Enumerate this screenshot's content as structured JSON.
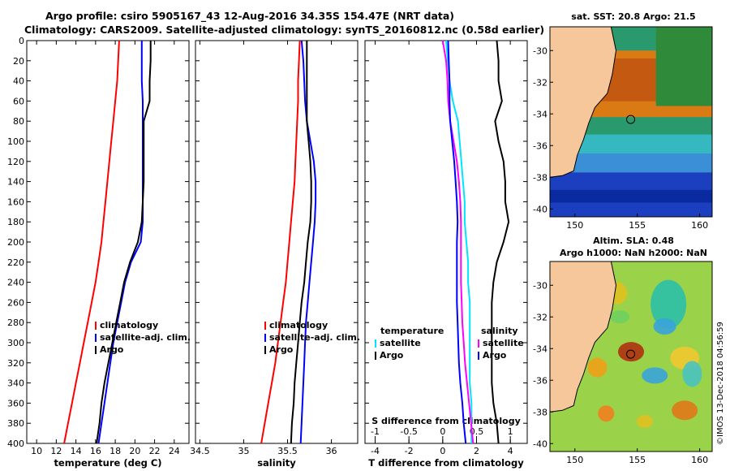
{
  "title_line1": "Argo profile: csiro 5905167_43 12-Aug-2016 34.35S 154.47E (NRT data)",
  "title_line2": "Climatology: CARS2009. Satellite-adjusted climatology: synTS_20160812.nc (0.58d earlier)",
  "map_sst_title": "sat. SST: 20.8 Argo: 21.5",
  "map_sla_title1": "Altim. SLA: 0.48",
  "map_sla_title2": "Argo h1000: NaN h2000: NaN",
  "stamp": "©IMOS 13-Dec-2018 04:56:59",
  "colors": {
    "climatology": "#ff0000",
    "satellite": "#0000ff",
    "argo": "#000000",
    "t_diff_sat": "#00e5ff",
    "s_diff_sat": "#ff00ff",
    "land": "#f5c79a"
  },
  "chart_data": [
    {
      "type": "line",
      "name": "temperature",
      "xlabel": "temperature (deg C)",
      "ylabel": "",
      "xlim": [
        9,
        25.5
      ],
      "ylim": [
        400,
        0
      ],
      "xticks": [
        "10",
        "12",
        "14",
        "16",
        "18",
        "20",
        "22",
        "24"
      ],
      "yticks": [
        "0",
        "20",
        "40",
        "60",
        "80",
        "100",
        "120",
        "140",
        "160",
        "180",
        "200",
        "220",
        "240",
        "260",
        "280",
        "300",
        "320",
        "340",
        "360",
        "380",
        "400"
      ],
      "legend": [
        "climatology",
        "satellite-adj. clim.",
        "Argo"
      ],
      "series": [
        {
          "name": "climatology",
          "x": [
            18.4,
            18.3,
            18.2,
            18.0,
            17.8,
            17.6,
            17.4,
            17.2,
            17.0,
            16.8,
            16.6,
            16.3,
            16.0,
            15.6,
            15.2,
            14.8,
            14.4,
            14.0,
            13.6,
            13.2,
            12.8
          ],
          "y": [
            0,
            20,
            40,
            60,
            80,
            100,
            120,
            140,
            160,
            180,
            200,
            220,
            240,
            260,
            280,
            300,
            320,
            340,
            360,
            380,
            400
          ]
        },
        {
          "name": "satellite-adj. clim.",
          "x": [
            20.7,
            20.7,
            20.7,
            20.8,
            20.8,
            20.8,
            20.8,
            20.8,
            20.8,
            20.8,
            20.6,
            19.6,
            19.0,
            18.6,
            18.2,
            17.8,
            17.5,
            17.2,
            16.9,
            16.6,
            16.3
          ],
          "y": [
            0,
            20,
            40,
            60,
            80,
            100,
            120,
            140,
            160,
            180,
            200,
            220,
            240,
            260,
            280,
            300,
            320,
            340,
            360,
            380,
            400
          ]
        },
        {
          "name": "Argo",
          "x": [
            21.6,
            21.6,
            21.5,
            21.5,
            20.9,
            20.9,
            20.9,
            20.9,
            20.8,
            20.7,
            20.3,
            19.5,
            18.9,
            18.5,
            18.1,
            17.7,
            17.3,
            16.9,
            16.6,
            16.4,
            16.1
          ],
          "y": [
            0,
            20,
            40,
            60,
            80,
            100,
            120,
            140,
            160,
            180,
            200,
            220,
            240,
            260,
            280,
            300,
            320,
            340,
            360,
            380,
            400
          ]
        }
      ]
    },
    {
      "type": "line",
      "name": "salinity",
      "xlabel": "salinity",
      "ylabel": "",
      "xlim": [
        34.45,
        36.3
      ],
      "ylim": [
        400,
        0
      ],
      "xticks": [
        "34.5",
        "35",
        "35.5",
        "36"
      ],
      "legend": [
        "climatology",
        "satellite-adj. clim.",
        "Argo"
      ],
      "series": [
        {
          "name": "climatology",
          "x": [
            35.64,
            35.63,
            35.62,
            35.62,
            35.61,
            35.6,
            35.59,
            35.58,
            35.56,
            35.54,
            35.52,
            35.5,
            35.48,
            35.45,
            35.42,
            35.39,
            35.36,
            35.32,
            35.28,
            35.24,
            35.2
          ],
          "y": [
            0,
            20,
            40,
            60,
            80,
            100,
            120,
            140,
            160,
            180,
            200,
            220,
            240,
            260,
            280,
            300,
            320,
            340,
            360,
            380,
            400
          ]
        },
        {
          "name": "satellite-adj. clim.",
          "x": [
            35.66,
            35.68,
            35.69,
            35.7,
            35.72,
            35.76,
            35.8,
            35.82,
            35.82,
            35.81,
            35.79,
            35.77,
            35.75,
            35.73,
            35.71,
            35.7,
            35.69,
            35.68,
            35.67,
            35.66,
            35.65
          ],
          "y": [
            0,
            20,
            40,
            60,
            80,
            100,
            120,
            140,
            160,
            180,
            200,
            220,
            240,
            260,
            280,
            300,
            320,
            340,
            360,
            380,
            400
          ]
        },
        {
          "name": "Argo",
          "x": [
            35.72,
            35.72,
            35.72,
            35.72,
            35.72,
            35.74,
            35.76,
            35.77,
            35.77,
            35.76,
            35.73,
            35.71,
            35.69,
            35.66,
            35.64,
            35.62,
            35.6,
            35.58,
            35.57,
            35.55,
            35.54
          ],
          "y": [
            0,
            20,
            40,
            60,
            80,
            100,
            120,
            140,
            160,
            180,
            200,
            220,
            240,
            260,
            280,
            300,
            320,
            340,
            360,
            380,
            400
          ]
        }
      ]
    },
    {
      "type": "line",
      "name": "differences",
      "xlabel": "T difference from climatology",
      "top_axis_label": "S difference from climatology",
      "xlim": [
        -4.6,
        5.0
      ],
      "ylim": [
        400,
        0
      ],
      "xticks": [
        "-4",
        "-2",
        "0",
        "2",
        "4"
      ],
      "top_xticks": [
        "-1",
        "-0.5",
        "0",
        "0.5",
        "1"
      ],
      "legend_left_title": "temperature",
      "legend_right_title": "salinity",
      "legend_items": [
        "satellite",
        "Argo"
      ],
      "series": [
        {
          "name": "T satellite",
          "x": [
            0.2,
            0.3,
            0.4,
            0.6,
            0.9,
            1.0,
            1.1,
            1.2,
            1.3,
            1.3,
            1.4,
            1.5,
            1.5,
            1.6,
            1.6,
            1.6,
            1.6,
            1.6,
            1.7,
            1.7,
            1.7
          ],
          "y": [
            0,
            20,
            40,
            60,
            80,
            100,
            120,
            140,
            160,
            180,
            200,
            220,
            240,
            260,
            280,
            300,
            320,
            340,
            360,
            380,
            400
          ]
        },
        {
          "name": "T Argo",
          "x": [
            3.2,
            3.3,
            3.3,
            3.5,
            3.1,
            3.3,
            3.6,
            3.7,
            3.7,
            3.9,
            3.6,
            3.2,
            3.0,
            2.9,
            2.9,
            2.9,
            2.9,
            2.9,
            3.0,
            3.2,
            3.3
          ],
          "y": [
            0,
            20,
            40,
            60,
            80,
            100,
            120,
            140,
            160,
            180,
            200,
            220,
            240,
            260,
            280,
            300,
            320,
            340,
            360,
            380,
            400
          ]
        },
        {
          "name": "S satellite",
          "x": [
            0.0,
            0.05,
            0.07,
            0.08,
            0.11,
            0.16,
            0.21,
            0.24,
            0.26,
            0.27,
            0.27,
            0.27,
            0.27,
            0.28,
            0.29,
            0.31,
            0.33,
            0.36,
            0.39,
            0.42,
            0.45
          ],
          "y": [
            0,
            20,
            40,
            60,
            80,
            100,
            120,
            140,
            160,
            180,
            200,
            220,
            240,
            260,
            280,
            300,
            320,
            340,
            360,
            380,
            400
          ]
        },
        {
          "name": "S Argo",
          "x": [
            0.08,
            0.09,
            0.1,
            0.1,
            0.11,
            0.14,
            0.17,
            0.19,
            0.21,
            0.22,
            0.21,
            0.21,
            0.21,
            0.21,
            0.22,
            0.23,
            0.24,
            0.26,
            0.29,
            0.31,
            0.34
          ],
          "y": [
            0,
            20,
            40,
            60,
            80,
            100,
            120,
            140,
            160,
            180,
            200,
            220,
            240,
            260,
            280,
            300,
            320,
            340,
            360,
            380,
            400
          ]
        }
      ]
    },
    {
      "type": "heatmap",
      "name": "sst-map",
      "title": "sat. SST: 20.8 Argo: 21.5",
      "xlim": [
        148,
        161
      ],
      "ylim": [
        -40.5,
        -28.5
      ],
      "xticks": [
        "150",
        "155",
        "160"
      ],
      "yticks": [
        "-30",
        "-32",
        "-34",
        "-36",
        "-38",
        "-40"
      ],
      "argo_position": {
        "lon": 154.47,
        "lat": -34.35
      }
    },
    {
      "type": "heatmap",
      "name": "sla-map",
      "title": "Altim. SLA: 0.48",
      "xlim": [
        148,
        161
      ],
      "ylim": [
        -40.5,
        -28.5
      ],
      "xticks": [
        "150",
        "155",
        "160"
      ],
      "yticks": [
        "-30",
        "-32",
        "-34",
        "-36",
        "-38",
        "-40"
      ],
      "argo_position": {
        "lon": 154.47,
        "lat": -34.35
      }
    }
  ]
}
